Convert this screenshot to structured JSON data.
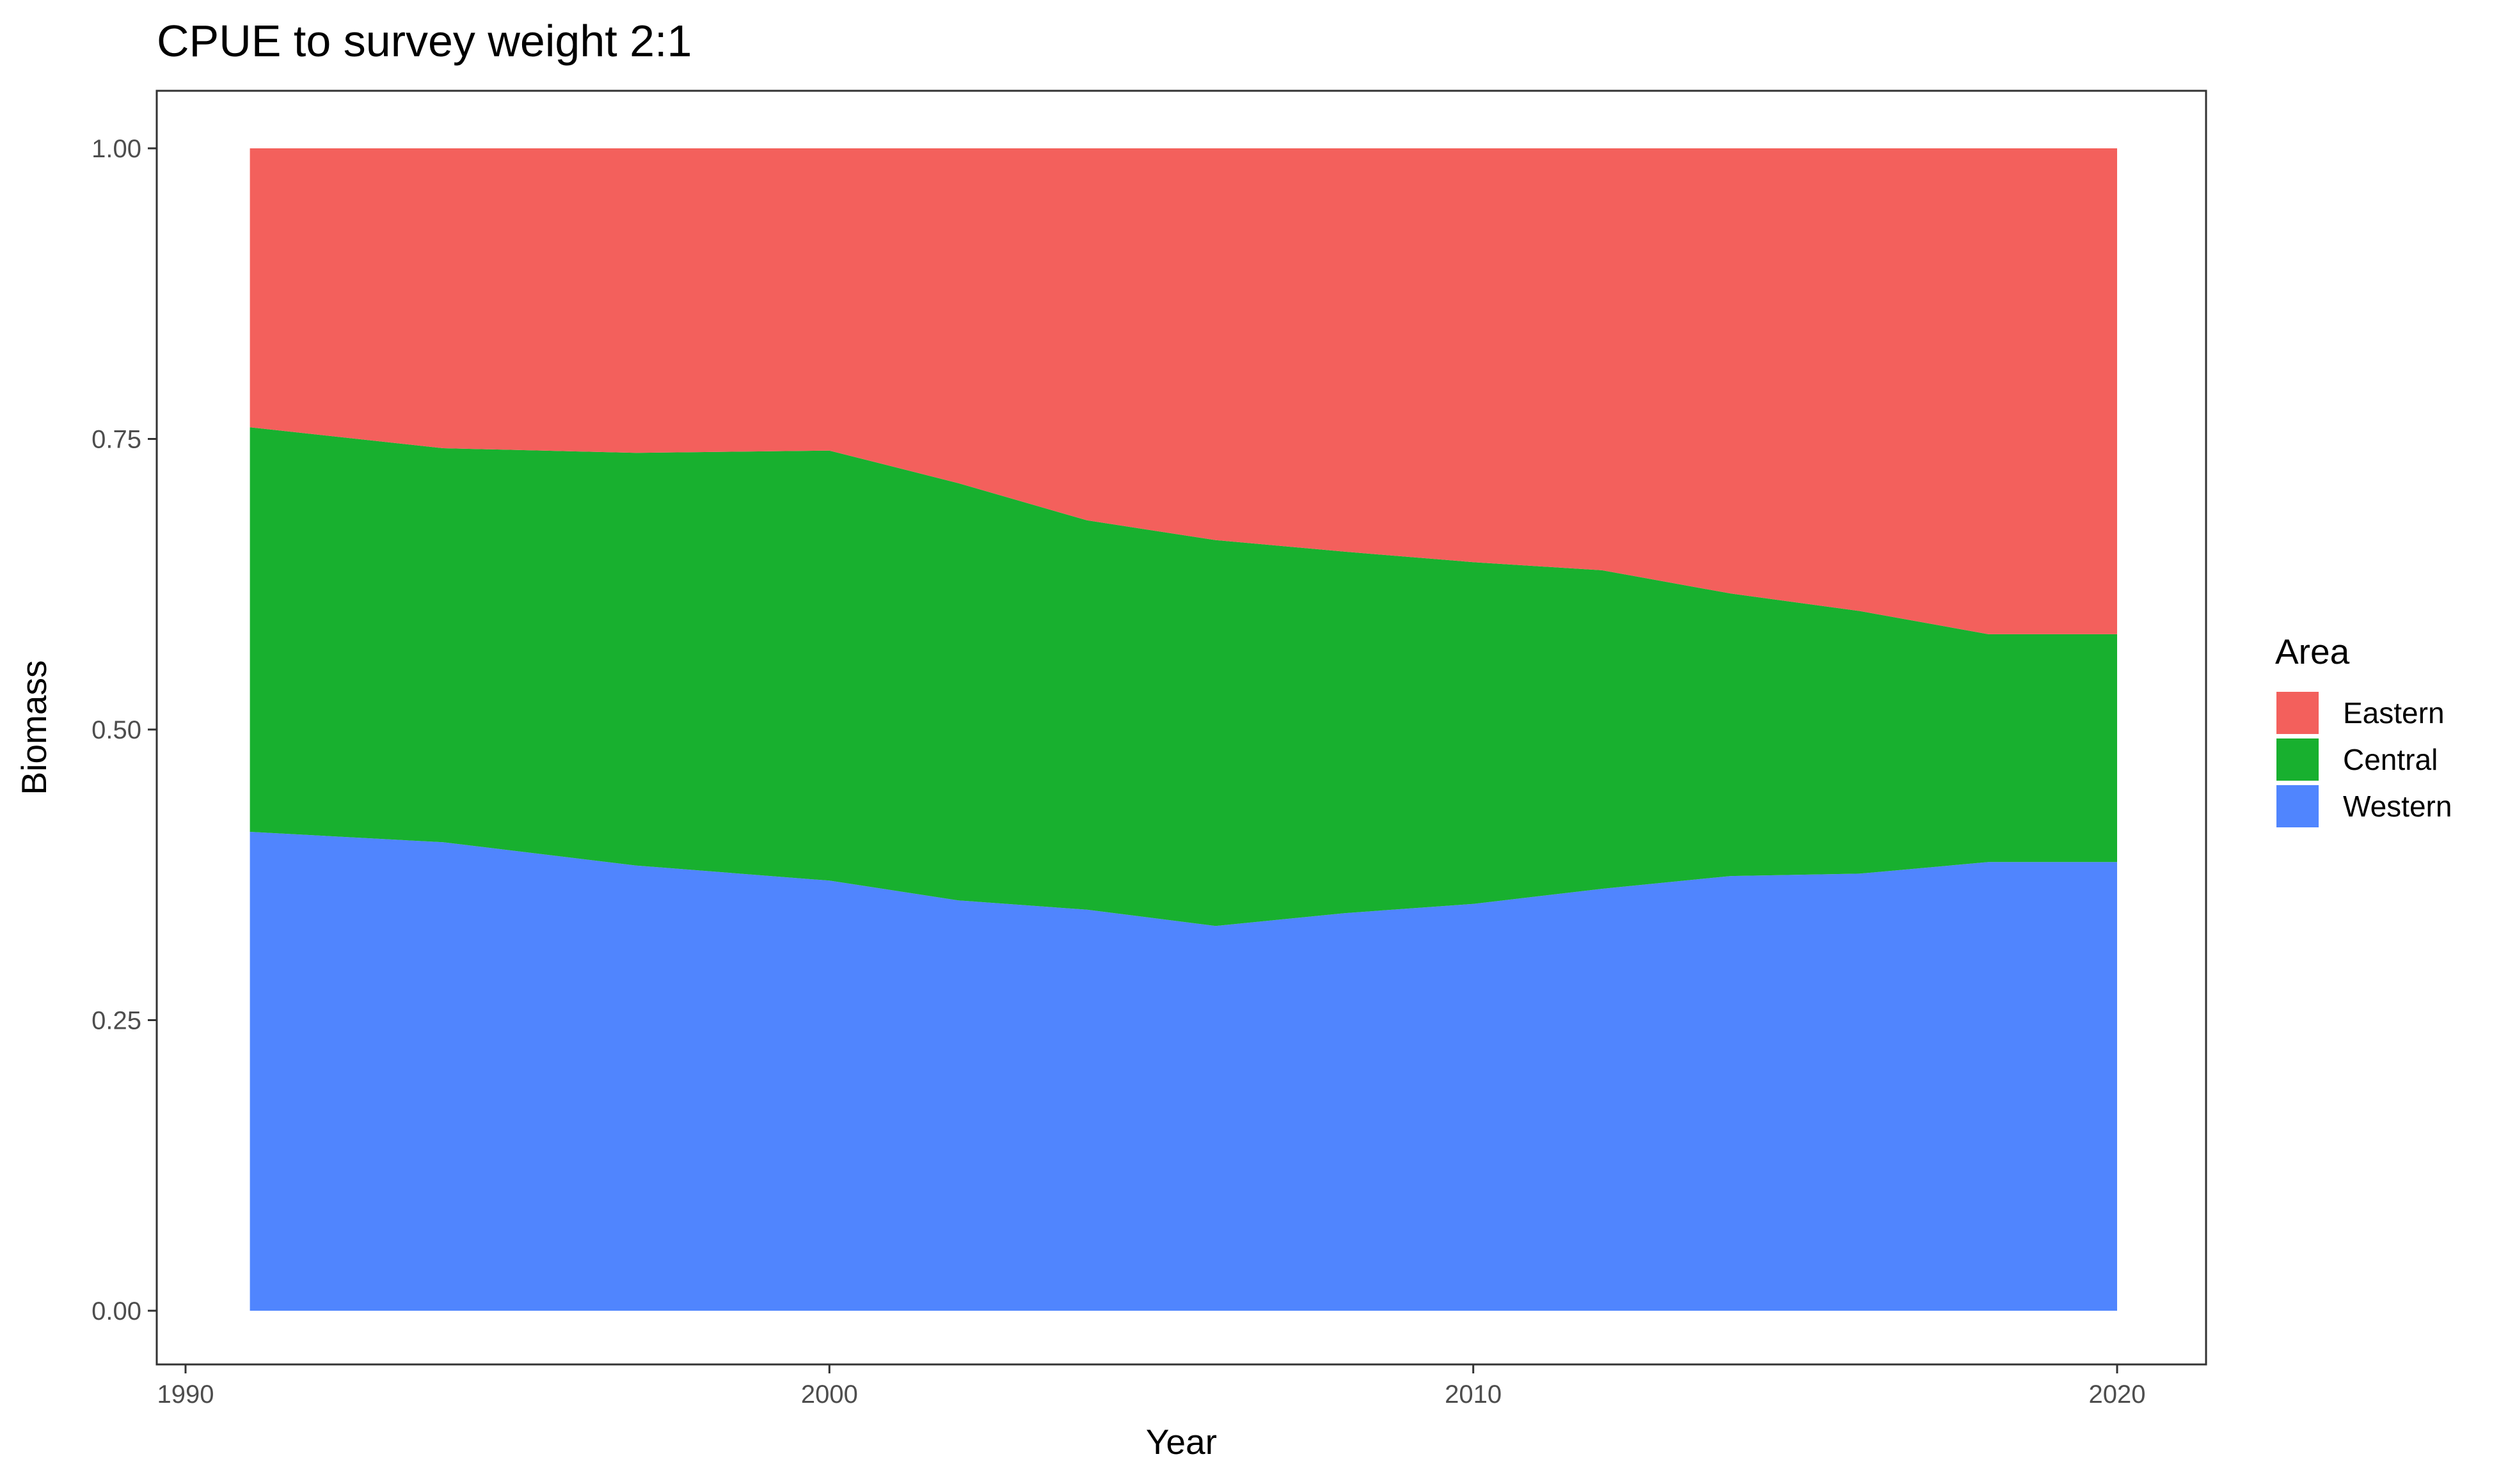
{
  "chart_data": {
    "type": "area",
    "stacked": true,
    "title": "CPUE to survey weight 2:1",
    "xlabel": "Year",
    "ylabel": "Biomass",
    "xlim": [
      1990,
      2020
    ],
    "ylim": [
      0,
      1
    ],
    "x_ticks": [
      "1990",
      "2000",
      "2010",
      "2020"
    ],
    "y_ticks": [
      "0.00",
      "0.25",
      "0.50",
      "0.75",
      "1.00"
    ],
    "grid": false,
    "legend_placement": "right",
    "legend_title": "Area",
    "x": [
      1991,
      1994,
      1997,
      2000,
      2002,
      2004,
      2006,
      2008,
      2010,
      2012,
      2014,
      2016,
      2018,
      2020
    ],
    "series": [
      {
        "name": "Eastern",
        "color": "#F3605C",
        "values": [
          0.24,
          0.258,
          0.262,
          0.26,
          0.288,
          0.32,
          0.337,
          0.347,
          0.356,
          0.363,
          0.383,
          0.398,
          0.418,
          0.418
        ]
      },
      {
        "name": "Central",
        "color": "#18B02F",
        "values": [
          0.348,
          0.339,
          0.355,
          0.37,
          0.359,
          0.335,
          0.332,
          0.311,
          0.294,
          0.274,
          0.243,
          0.226,
          0.196,
          0.196
        ]
      },
      {
        "name": "Western",
        "color": "#5085FE",
        "values": [
          0.412,
          0.403,
          0.383,
          0.37,
          0.353,
          0.345,
          0.331,
          0.342,
          0.35,
          0.363,
          0.374,
          0.376,
          0.386,
          0.386
        ]
      }
    ]
  }
}
